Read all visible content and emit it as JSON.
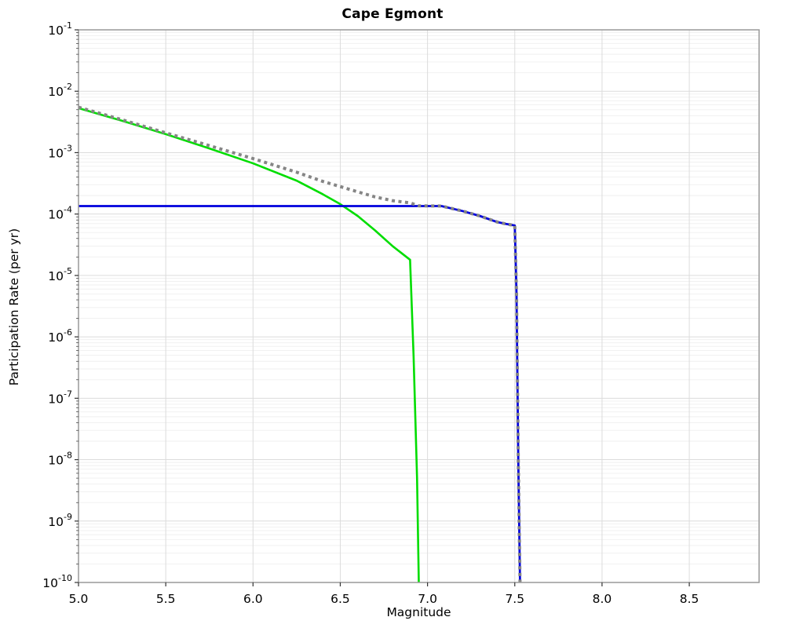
{
  "chart_data": {
    "type": "line",
    "title": "Cape Egmont",
    "xlabel": "Magnitude",
    "ylabel": "Participation Rate (per yr)",
    "xlim": [
      5.0,
      8.9
    ],
    "ylim": [
      1e-10,
      0.1
    ],
    "ylog": true,
    "grid": true,
    "legend": "none",
    "xticks": [
      5.0,
      5.5,
      6.0,
      6.5,
      7.0,
      7.5,
      8.0,
      8.5
    ],
    "ytick_exponents": [
      -1,
      -2,
      -3,
      -4,
      -5,
      -6,
      -7,
      -8,
      -9,
      -10
    ],
    "colors": {
      "green_series": "#00dd00",
      "blue_series": "#0000dd",
      "gray_dotted_series": "#858585",
      "grid_major": "#dcdcdc",
      "grid_minor": "#efefef",
      "plot_border": "#999999",
      "tick": "#333333",
      "text": "#000000"
    },
    "series": [
      {
        "name": "green-solid-curve",
        "color": "#00dd00",
        "style": "solid",
        "width": 2.6,
        "points": [
          [
            5.0,
            0.0053
          ],
          [
            5.25,
            0.0033
          ],
          [
            5.5,
            0.002
          ],
          [
            5.75,
            0.00117
          ],
          [
            6.0,
            0.00067
          ],
          [
            6.25,
            0.00035
          ],
          [
            6.4,
            0.00021
          ],
          [
            6.5,
            0.000145
          ],
          [
            6.6,
            9.3e-05
          ],
          [
            6.7,
            5.4e-05
          ],
          [
            6.8,
            3e-05
          ],
          [
            6.9,
            1.8e-05
          ],
          [
            6.92,
            5e-07
          ],
          [
            6.94,
            5e-09
          ],
          [
            6.95,
            1e-10
          ]
        ]
      },
      {
        "name": "blue-solid-curve",
        "color": "#0000dd",
        "style": "solid",
        "width": 2.8,
        "points": [
          [
            5.0,
            0.000135
          ],
          [
            7.08,
            0.000135
          ],
          [
            7.2,
            0.000112
          ],
          [
            7.3,
            9.3e-05
          ],
          [
            7.4,
            7.4e-05
          ],
          [
            7.45,
            6.9e-05
          ],
          [
            7.5,
            6.5e-05
          ],
          [
            7.51,
            5e-06
          ],
          [
            7.52,
            1e-08
          ],
          [
            7.53,
            1e-10
          ]
        ]
      },
      {
        "name": "gray-dotted-curve",
        "color": "#858585",
        "style": "dotted",
        "width": 4,
        "points": [
          [
            5.0,
            0.0055
          ],
          [
            5.25,
            0.00343
          ],
          [
            5.5,
            0.0021
          ],
          [
            5.75,
            0.0013
          ],
          [
            6.0,
            0.0008
          ],
          [
            6.25,
            0.00048
          ],
          [
            6.4,
            0.00034
          ],
          [
            6.5,
            0.00028
          ],
          [
            6.6,
            0.00023
          ],
          [
            6.7,
            0.00019
          ],
          [
            6.8,
            0.000165
          ],
          [
            6.9,
            0.000152
          ],
          [
            6.95,
            0.000136
          ],
          [
            7.08,
            0.000135
          ],
          [
            7.2,
            0.000112
          ],
          [
            7.3,
            9.3e-05
          ],
          [
            7.4,
            7.4e-05
          ],
          [
            7.45,
            6.9e-05
          ],
          [
            7.5,
            6.5e-05
          ],
          [
            7.51,
            5e-06
          ],
          [
            7.52,
            1e-08
          ],
          [
            7.53,
            1e-10
          ]
        ]
      }
    ]
  }
}
